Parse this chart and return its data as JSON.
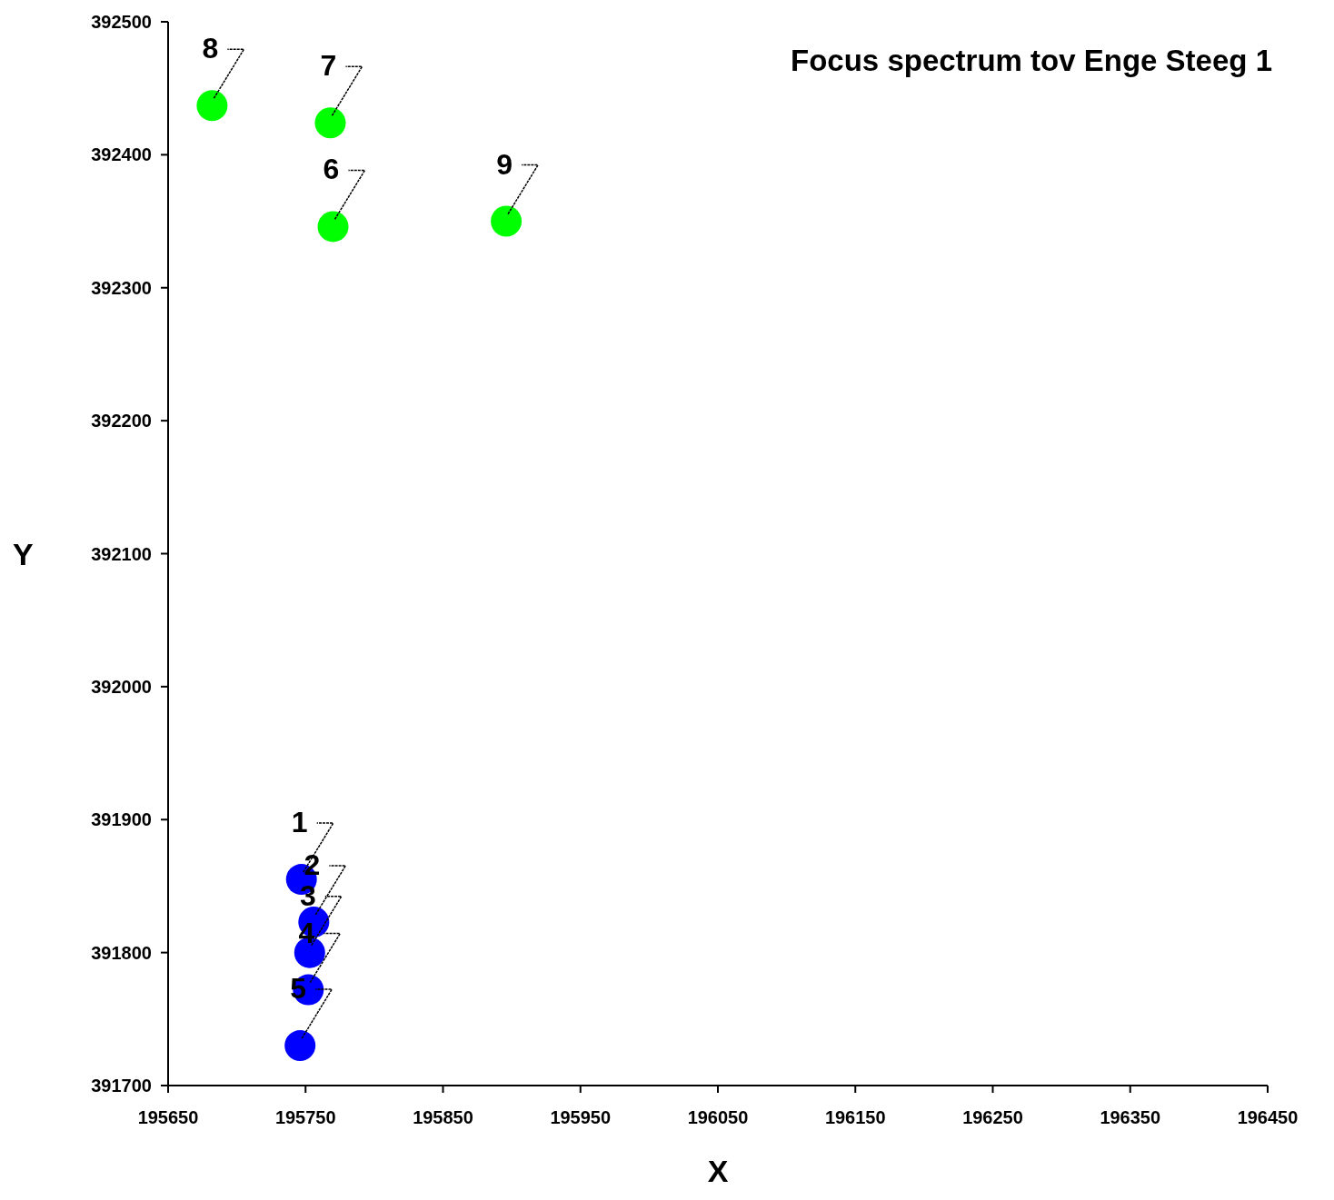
{
  "chart_data": {
    "type": "scatter",
    "title": "Focus spectrum tov Enge Steeg 1",
    "xlabel": "X",
    "ylabel": "Y",
    "series": [
      {
        "color": "#0000ff",
        "x": [
          195747,
          195756,
          195753,
          195752,
          195746
        ],
        "values": [
          391855,
          391823,
          391800,
          391772,
          391730
        ]
      },
      {
        "color": "#00ff00",
        "x": [
          195770,
          195768,
          195682,
          195896
        ],
        "values": [
          392346,
          392424,
          392437,
          392350
        ]
      }
    ],
    "annotations": [
      {
        "text": "1",
        "x": 195747,
        "y": 391855
      },
      {
        "text": "2",
        "x": 195756,
        "y": 391823
      },
      {
        "text": "3",
        "x": 195753,
        "y": 391800
      },
      {
        "text": "4",
        "x": 195752,
        "y": 391772
      },
      {
        "text": "5",
        "x": 195746,
        "y": 391730
      },
      {
        "text": "6",
        "x": 195770,
        "y": 392346
      },
      {
        "text": "7",
        "x": 195768,
        "y": 392424
      },
      {
        "text": "8",
        "x": 195682,
        "y": 392437
      },
      {
        "text": "9",
        "x": 195896,
        "y": 392350
      }
    ],
    "xlim": [
      195650,
      196450
    ],
    "xticks": [
      195650,
      195750,
      195850,
      195950,
      196050,
      196150,
      196250,
      196350,
      196450
    ],
    "ylim": [
      391700,
      392500
    ],
    "yticks": [
      391700,
      391800,
      391900,
      392000,
      392100,
      392200,
      392300,
      392400,
      392500
    ],
    "grid": false,
    "legend": false,
    "marker": "circle"
  }
}
